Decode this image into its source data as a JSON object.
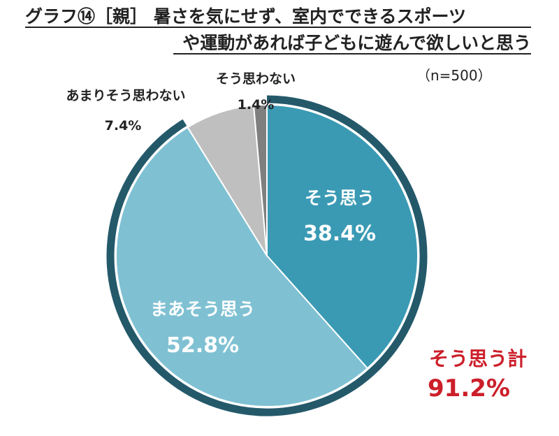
{
  "title": {
    "line1": "グラフ⑭［親］ 暑さを気にせず、室内でできるスポーツ",
    "line2": "や運動があれば子どもに遊んで欲しいと思う"
  },
  "sample_size": "（n=500）",
  "chart_data": {
    "type": "pie",
    "start_angle_deg": 0,
    "direction": "clockwise",
    "slices": [
      {
        "label": "そう思う",
        "value": 38.4,
        "display": "38.4%",
        "color": "#3a9ab4"
      },
      {
        "label": "まあそう思う",
        "value": 52.8,
        "display": "52.8%",
        "color": "#7fc1d3"
      },
      {
        "label": "あまりそう思わない",
        "value": 7.4,
        "display": "7.4%",
        "color": "#bfbfbf"
      },
      {
        "label": "そう思わない",
        "value": 1.4,
        "display": "1.4%",
        "color": "#7f7f7f"
      }
    ],
    "highlight_ring": {
      "color": "#24596a",
      "covers": [
        "そう思う",
        "まあそう思う"
      ]
    },
    "total": {
      "label": "そう思う計",
      "value": 91.2,
      "display": "91.2%",
      "color": "#cc1f2a"
    }
  }
}
